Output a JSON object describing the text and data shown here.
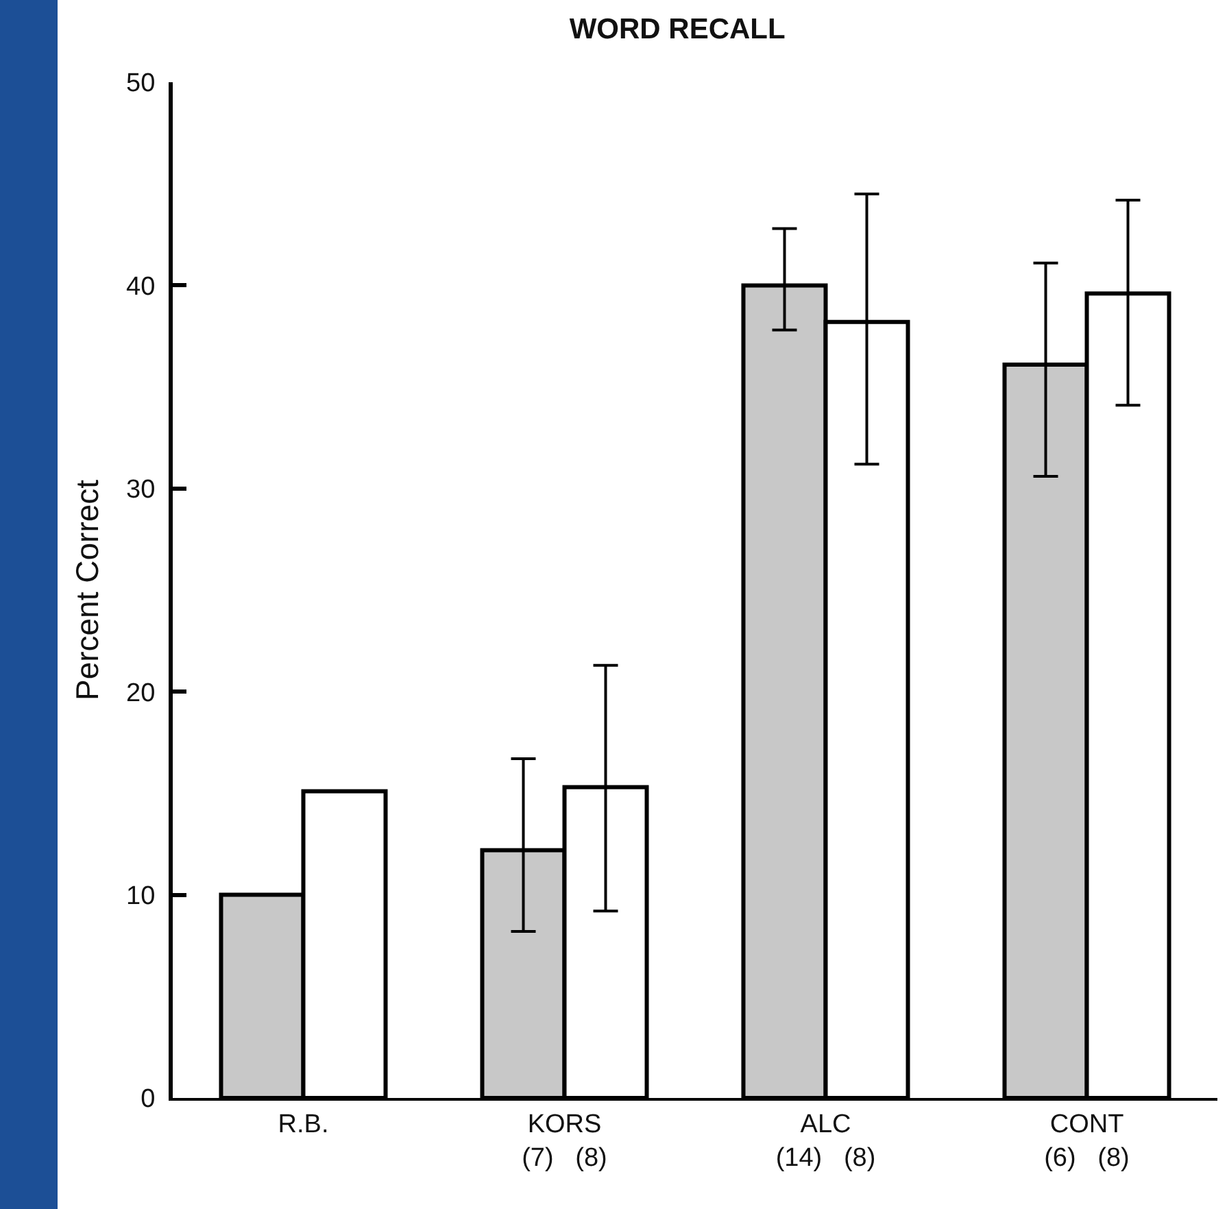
{
  "chart_data": {
    "type": "bar",
    "title": "WORD RECALL",
    "ylabel": "Percent Correct",
    "categories": [
      "R.B.",
      "KORS\n(7)   (8)",
      "ALC\n(14)   (8)",
      "CONT\n(6)   (8)"
    ],
    "series": [
      {
        "color": "#c8c8c8",
        "values": [
          10,
          12.2,
          40,
          36.1
        ],
        "errors": [
          null,
          [
            8.2,
            16.7
          ],
          [
            37.8,
            42.8
          ],
          [
            30.6,
            41.1
          ]
        ]
      },
      {
        "color": "#ffffff",
        "values": [
          15.1,
          15.3,
          38.2,
          39.6
        ],
        "errors": [
          null,
          [
            9.2,
            21.3
          ],
          [
            31.2,
            44.5
          ],
          [
            34.1,
            44.2
          ]
        ]
      }
    ],
    "ylim": [
      0,
      50
    ],
    "yticks": [
      0,
      10,
      20,
      30,
      40,
      50
    ],
    "grid": false
  }
}
